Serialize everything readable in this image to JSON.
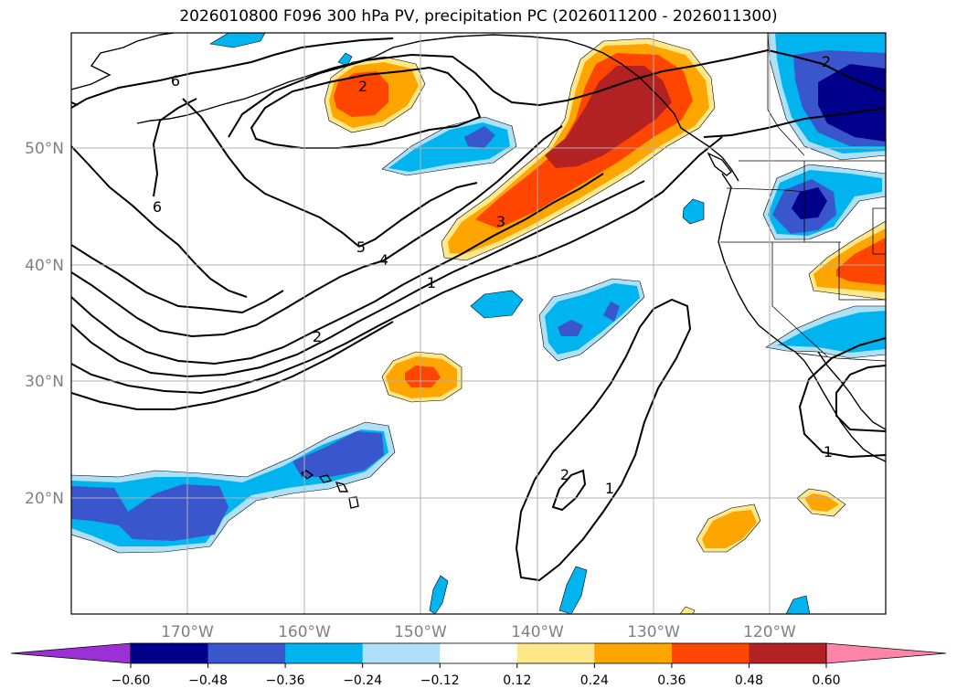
{
  "title": "2026010800 F096 300 hPa PV, precipitation PC (2026011200 - 2026011300)",
  "latitude_labels": [
    "50°N",
    "40°N",
    "30°N",
    "20°N"
  ],
  "longitude_labels": [
    "170°W",
    "160°W",
    "150°W",
    "140°W",
    "130°W",
    "120°W"
  ],
  "contour_labels": [
    "6",
    "6",
    "2",
    "5",
    "4",
    "3",
    "1",
    "2",
    "2",
    "1",
    "1",
    "2"
  ],
  "colorbar": {
    "tick_labels": [
      "−0.60",
      "−0.48",
      "−0.36",
      "−0.24",
      "−0.12",
      "0.12",
      "0.24",
      "0.36",
      "0.48",
      "0.60"
    ],
    "colors": [
      "#9b30d6",
      "#00008b",
      "#3a56cc",
      "#00b4f0",
      "#aee0f8",
      "#ffffff",
      "#ffe88a",
      "#ffa500",
      "#ff4500",
      "#b22222",
      "#ff85a8"
    ]
  },
  "palette": {
    "dark_blue": "#00008b",
    "royal_blue": "#3a56cc",
    "sky_blue": "#00b4f0",
    "light_blue": "#aee0f8",
    "light_yellow": "#ffe88a",
    "orange": "#ffa500",
    "red_orange": "#ff4500",
    "dark_red": "#b22222"
  }
}
